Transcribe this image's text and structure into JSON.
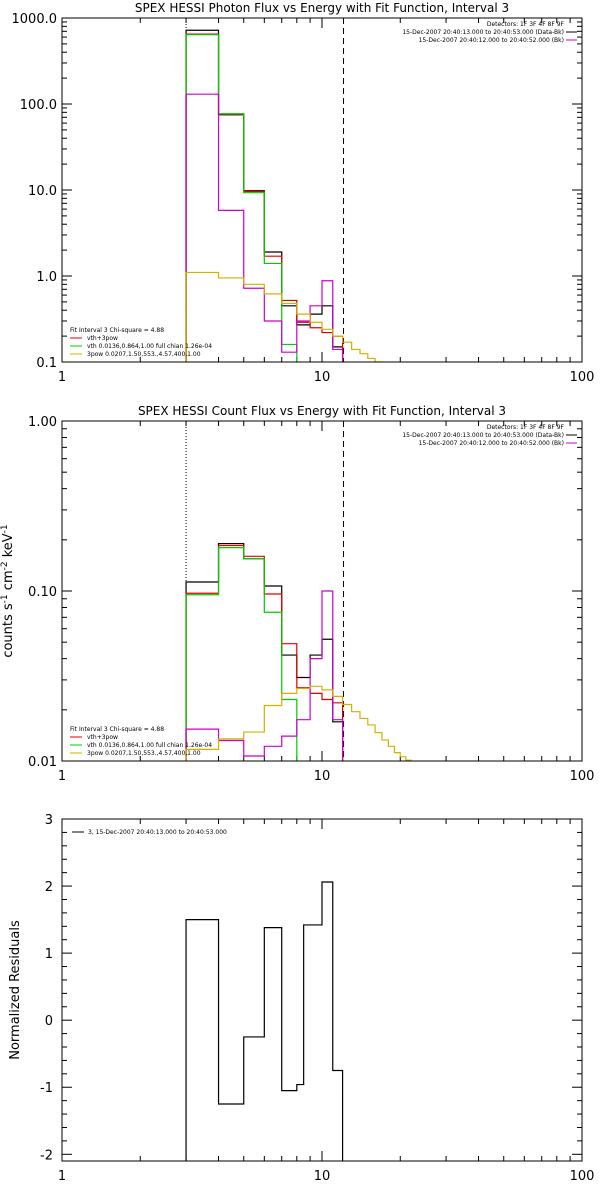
{
  "colors": {
    "black": "#000000",
    "red": "#e00000",
    "green": "#00cc00",
    "magenta": "#cc00cc",
    "yellow": "#d4b000"
  },
  "chart_data": [
    {
      "id": "photon",
      "type": "line",
      "title": "SPEX HESSI Photon Flux vs Energy with Fit Function, Interval 3",
      "xlabel": "",
      "ylabel": "",
      "xscale": "log",
      "yscale": "log",
      "xlim": [
        1,
        100
      ],
      "ylim": [
        0.1,
        1000
      ],
      "xtick_labels": [
        "1",
        "10",
        "100"
      ],
      "ytick_labels": [
        "0.1",
        "1.0",
        "10.0",
        "100.0",
        "1000.0"
      ],
      "vlines": [
        {
          "x": 3.0,
          "style": "dotted"
        },
        {
          "x": 12.1,
          "style": "dashed"
        }
      ],
      "legend_top": {
        "detectors": "Detectors: 1F 3F 4F 8F 9F",
        "lines": [
          {
            "text": "15-Dec-2007 20:40:13.000 to 20:40:53.000 (Data-Bk)",
            "color": "black"
          },
          {
            "text": "15-Dec-2007 20:40:12.000 to 20:40:52.000 (Bk)",
            "color": "magenta"
          }
        ]
      },
      "legend_bottom": {
        "header": "Fit Interval  3    Chi-square = 4.88",
        "lines": [
          {
            "text": "vth+3pow",
            "color": "red"
          },
          {
            "text": "vth 0.0136,0.864,1.00  full chian 1.26e-04",
            "color": "green"
          },
          {
            "text": "3pow 0.0207,1.50,553.,4.57,400,1.00",
            "color": "yellow"
          }
        ]
      },
      "series": [
        {
          "role": "data_minus_bkg",
          "color": "black",
          "edges": [
            3,
            4,
            5,
            6,
            7,
            8,
            9,
            10,
            11,
            12
          ],
          "values": [
            720,
            75,
            9.8,
            1.9,
            0.45,
            0.27,
            0.36,
            0.45,
            0.15
          ]
        },
        {
          "role": "total_fit",
          "color": "red",
          "edges": [
            3,
            4,
            5,
            6,
            7,
            8,
            9,
            10,
            11,
            12
          ],
          "values": [
            650,
            76,
            9.6,
            1.7,
            0.52,
            0.29,
            0.25,
            0.22,
            0.2
          ]
        },
        {
          "role": "thermal",
          "color": "green",
          "edges": [
            3,
            4,
            5,
            6,
            7,
            8
          ],
          "values": [
            640,
            77,
            9.3,
            1.4,
            0.16
          ]
        },
        {
          "role": "background",
          "color": "magenta",
          "edges": [
            3,
            4,
            5,
            6,
            7,
            8,
            9,
            10,
            11,
            12
          ],
          "values": [
            130,
            5.8,
            0.72,
            0.3,
            0.13,
            0.3,
            0.45,
            0.88,
            0.14
          ]
        },
        {
          "role": "powerlaw",
          "color": "yellow",
          "edges": [
            3,
            4,
            5,
            6,
            7,
            8,
            9,
            10,
            11,
            12,
            13,
            14,
            15,
            16,
            17
          ],
          "values": [
            1.1,
            0.95,
            0.8,
            0.62,
            0.48,
            0.36,
            0.29,
            0.24,
            0.2,
            0.17,
            0.14,
            0.125,
            0.11,
            0.1
          ]
        }
      ]
    },
    {
      "id": "count",
      "type": "line",
      "title": "SPEX HESSI Count Flux vs Energy with Fit Function, Interval 3",
      "xlabel": "",
      "ylabel": "counts s",
      "ylabel_parts": [
        "counts s",
        "-1",
        " cm",
        "-2",
        " keV",
        "-1"
      ],
      "xscale": "log",
      "yscale": "log",
      "xlim": [
        1,
        100
      ],
      "ylim": [
        0.01,
        1.0
      ],
      "xtick_labels": [
        "1",
        "10",
        "100"
      ],
      "ytick_labels": [
        "0.01",
        "0.10",
        "1.00"
      ],
      "vlines": [
        {
          "x": 3.0,
          "style": "dotted"
        },
        {
          "x": 12.1,
          "style": "dashed"
        }
      ],
      "legend_top": {
        "detectors": "Detectors: 1F 3F 4F 8F 9F",
        "lines": [
          {
            "text": "15-Dec-2007 20:40:13.000 to 20:40:53.000 (Data-Bk)",
            "color": "black"
          },
          {
            "text": "15-Dec-2007 20:40:12.000 to 20:40:52.000 (Bk)",
            "color": "magenta"
          }
        ]
      },
      "legend_bottom": {
        "header": "Fit Interval  3    Chi-square = 4.88",
        "lines": [
          {
            "text": "vth+3pow",
            "color": "red"
          },
          {
            "text": "vth 0.0136,0.864,1.00  full chian 1.26e-04",
            "color": "green"
          },
          {
            "text": "3pow 0.0207,1.50,553.,4.57,400,1.00",
            "color": "yellow"
          }
        ]
      },
      "series": [
        {
          "role": "data_minus_bkg",
          "color": "black",
          "edges": [
            3,
            4,
            5,
            6,
            7,
            8,
            9,
            10,
            11,
            12
          ],
          "values": [
            0.113,
            0.19,
            0.155,
            0.107,
            0.042,
            0.031,
            0.042,
            0.052,
            0.017
          ]
        },
        {
          "role": "total_fit",
          "color": "red",
          "edges": [
            3,
            4,
            5,
            6,
            7,
            8,
            9,
            10,
            11,
            12
          ],
          "values": [
            0.097,
            0.185,
            0.16,
            0.096,
            0.049,
            0.027,
            0.025,
            0.023,
            0.022
          ]
        },
        {
          "role": "thermal",
          "color": "green",
          "edges": [
            3,
            4,
            5,
            6,
            7,
            8
          ],
          "values": [
            0.095,
            0.18,
            0.155,
            0.075,
            0.023
          ]
        },
        {
          "role": "background",
          "color": "magenta",
          "edges": [
            3,
            4,
            5,
            6,
            7,
            8,
            9,
            10,
            11,
            12
          ],
          "values": [
            0.0154,
            0.0132,
            0.0107,
            0.0122,
            0.014,
            0.0175,
            0.04,
            0.1,
            0.0175
          ]
        },
        {
          "role": "powerlaw",
          "color": "yellow",
          "edges": [
            3,
            4,
            5,
            6,
            7,
            8,
            9,
            10,
            11,
            12,
            13,
            14,
            15,
            16,
            17,
            18,
            19,
            20,
            21,
            22
          ],
          "values": [
            0.0117,
            0.0135,
            0.0148,
            0.0212,
            0.025,
            0.0267,
            0.0275,
            0.0262,
            0.024,
            0.0215,
            0.0195,
            0.0178,
            0.0163,
            0.0147,
            0.0133,
            0.0122,
            0.0112,
            0.0106,
            0.0101
          ]
        }
      ]
    },
    {
      "id": "residuals",
      "type": "line",
      "title": "",
      "xlabel": "",
      "ylabel": "Normalized Residuals",
      "xscale": "log",
      "yscale": "linear",
      "xlim": [
        1,
        100
      ],
      "ylim": [
        -2.1,
        3.0
      ],
      "xtick_labels": [
        "1",
        "10",
        "100"
      ],
      "ytick_labels": [
        "-2",
        "-1",
        "0",
        "1",
        "2",
        "3"
      ],
      "legend_top": {
        "lines": [
          {
            "text": "3, 15-Dec-2007 20:40:13.000 to 20:40:53.000",
            "color": "black"
          }
        ]
      },
      "series": [
        {
          "role": "residuals",
          "color": "black",
          "edges": [
            3,
            4,
            5,
            6,
            7,
            8,
            8.5,
            9,
            10,
            11,
            12
          ],
          "values": [
            1.5,
            -1.25,
            -0.25,
            1.38,
            -1.05,
            -0.96,
            1.42,
            1.42,
            2.06,
            -0.75
          ]
        }
      ]
    }
  ]
}
